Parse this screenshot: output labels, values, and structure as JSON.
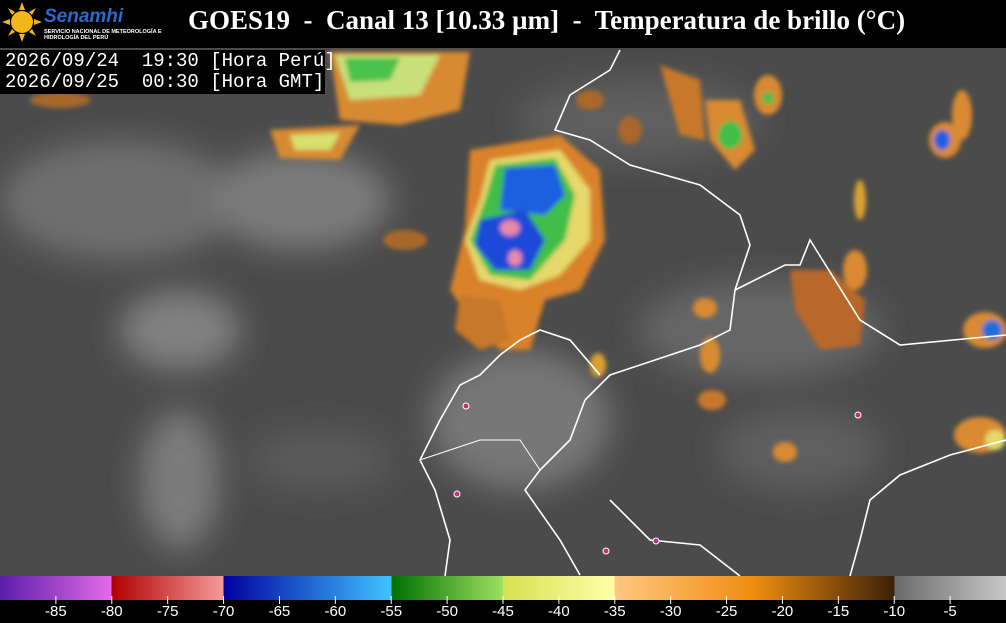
{
  "header": {
    "title": "GOES19  -  Canal 13 [10.33 µm]  -  Temperatura de brillo (°C)",
    "logo_name": "Senamhi",
    "logo_subtitle": "SERVICIO NACIONAL DE METEOROLOGÍA E HIDROLOGÍA DEL PERÚ"
  },
  "timestamps": [
    "2026/09/24  19:30 [Hora Perú]",
    "2026/09/25  00:30 [Hora GMT]"
  ],
  "colorbar": {
    "lim": [
      -90,
      0
    ],
    "ticks": [
      -85,
      -80,
      -75,
      -70,
      -65,
      -60,
      -55,
      -50,
      -45,
      -40,
      -35,
      -30,
      -25,
      -20,
      -15,
      -10,
      -5
    ]
  }
}
